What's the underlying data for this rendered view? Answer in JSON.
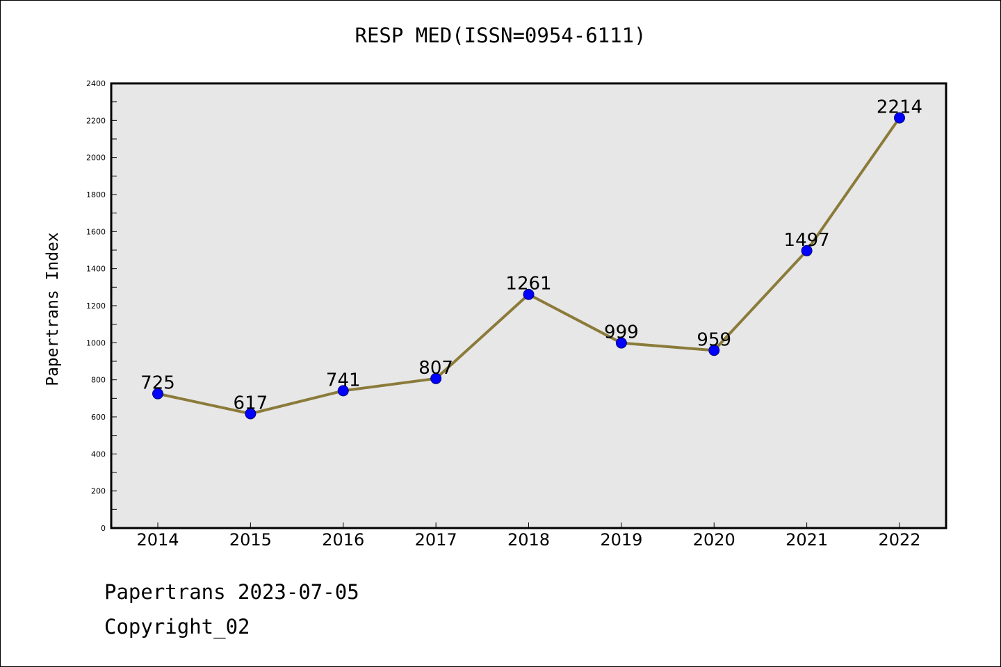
{
  "title": "RESP MED(ISSN=0954-6111)",
  "footer": {
    "date_line": "Papertrans 2023-07-05",
    "copyright_line": "Copyright_02"
  },
  "colors": {
    "plot_background": "#e7e7e7",
    "line": "#8b7b3a",
    "marker": "#0000ff",
    "axis": "#000000"
  },
  "chart_data": {
    "type": "line",
    "title": "RESP MED(ISSN=0954-6111)",
    "xlabel": "",
    "ylabel": "Papertrans Index",
    "categories": [
      "2014",
      "2015",
      "2016",
      "2017",
      "2018",
      "2019",
      "2020",
      "2021",
      "2022"
    ],
    "series": [
      {
        "values": [
          725,
          617,
          741,
          807,
          1261,
          999,
          959,
          1497,
          2214
        ]
      }
    ],
    "data_labels": [
      "725",
      "617",
      "741",
      "807",
      "1261",
      "999",
      "959",
      "1497",
      "2214"
    ],
    "ylim": [
      0,
      2400
    ],
    "y_ticks": [
      "0",
      "200",
      "400",
      "600",
      "800",
      "1000",
      "1200",
      "1400",
      "1600",
      "1800",
      "2000",
      "2200",
      "2400"
    ],
    "grid": false,
    "legend": "none"
  }
}
